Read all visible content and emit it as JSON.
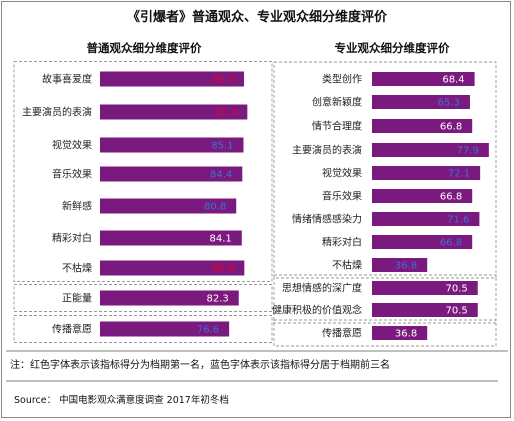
{
  "title": "《引爆者》普通观众、专业观众细分维度评价",
  "note": "注：红色字体表示该指标得分为档期第一名，蓝色字体表示该指标得分居于档期前三名",
  "source": "Source：  中国电影观众满意度调查 2017年初冬档",
  "colors": {
    "bar": "#7b1a7e",
    "rank_first": "#e0002a",
    "rank_top3": "#3b6fd6",
    "normal": "#ffffff"
  },
  "chart_data": [
    {
      "type": "bar",
      "orientation": "horizontal",
      "title": "普通观众细分维度评价",
      "categories": [
        "故事喜爱度",
        "主要演员的表演",
        "视觉效果",
        "音乐效果",
        "新鲜感",
        "精彩对白",
        "不枯燥",
        "正能量",
        "传播意愿"
      ],
      "values": [
        85.4,
        87.4,
        85.1,
        84.4,
        80.8,
        84.1,
        85.6,
        82.3,
        76.6
      ],
      "value_label_color": [
        "rank_first",
        "rank_first",
        "rank_top3",
        "rank_top3",
        "rank_top3",
        "normal",
        "rank_first",
        "normal",
        "rank_top3"
      ],
      "groups": [
        [
          0,
          6
        ],
        [
          7,
          7
        ],
        [
          8,
          8
        ]
      ],
      "xlim": [
        0,
        100
      ]
    },
    {
      "type": "bar",
      "orientation": "horizontal",
      "title": "专业观众细分维度评价",
      "categories": [
        "类型创作",
        "创意新颖度",
        "情节合理度",
        "主要演员的表演",
        "视觉效果",
        "音乐效果",
        "情绪情感感染力",
        "精彩对白",
        "不枯燥",
        "思想情感的深广度",
        "健康积极的价值观念",
        "传播意愿"
      ],
      "values": [
        68.4,
        65.3,
        66.8,
        77.9,
        72.1,
        66.8,
        71.6,
        66.8,
        36.8,
        70.5,
        70.5,
        36.8
      ],
      "value_label_color": [
        "normal",
        "rank_top3",
        "normal",
        "rank_top3",
        "rank_top3",
        "normal",
        "rank_top3",
        "rank_top3",
        "rank_top3",
        "normal",
        "normal",
        "normal"
      ],
      "groups": [
        [
          0,
          8
        ],
        [
          9,
          10
        ],
        [
          11,
          11
        ]
      ],
      "xlim": [
        0,
        100
      ]
    }
  ]
}
